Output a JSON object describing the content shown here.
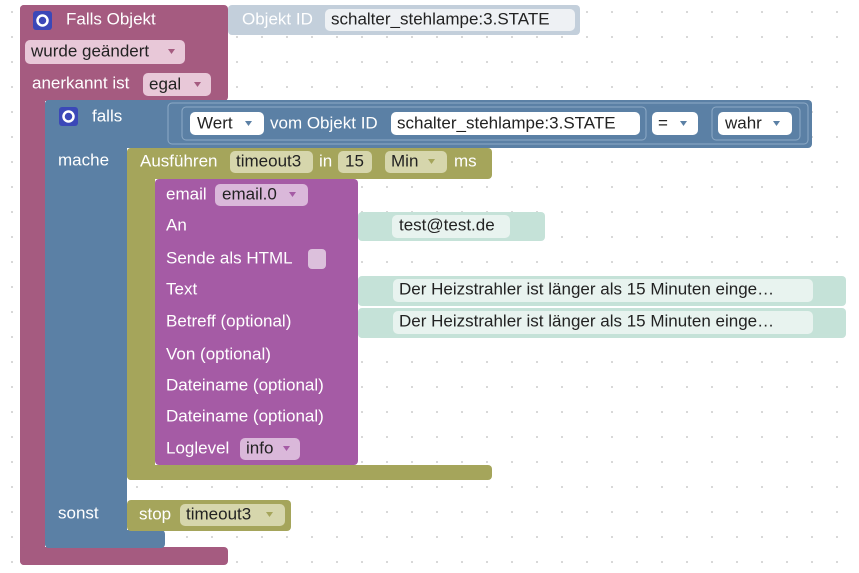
{
  "event_block": {
    "title": "Falls Objekt",
    "object_id_label": "Objekt ID",
    "object_id": "schalter_stehlampe:3.STATE",
    "trigger": "wurde geändert",
    "acknowledged_label": "anerkannt ist",
    "acknowledged": "egal"
  },
  "if_block": {
    "label": "falls",
    "condition": {
      "value_mode": "Wert",
      "from_label": "vom Objekt ID",
      "object_id": "schalter_stehlampe:3.STATE",
      "operator": "=",
      "compare_to": "wahr"
    },
    "do_label": "mache",
    "else_label": "sonst"
  },
  "timeout_block": {
    "label": "Ausführen",
    "name": "timeout3",
    "in_label": "in",
    "delay": 15,
    "unit": "Min",
    "ms_label": "ms"
  },
  "email_block": {
    "label": "email",
    "instance": "email.0",
    "fields": [
      {
        "label": "An",
        "value": "test@test.de"
      },
      {
        "label": "Sende als HTML"
      },
      {
        "label": "Text",
        "value": "Der Heizstrahler ist länger als 15 Minuten einge…"
      },
      {
        "label": "Betreff (optional)",
        "value": "Der Heizstrahler ist länger als 15 Minuten einge…"
      },
      {
        "label": "Von (optional)"
      },
      {
        "label": "Dateiname (optional)"
      },
      {
        "label": "Dateiname (optional)"
      }
    ],
    "loglevel_label": "Loglevel",
    "loglevel": "info"
  },
  "stop_block": {
    "label": "stop",
    "name": "timeout3"
  }
}
